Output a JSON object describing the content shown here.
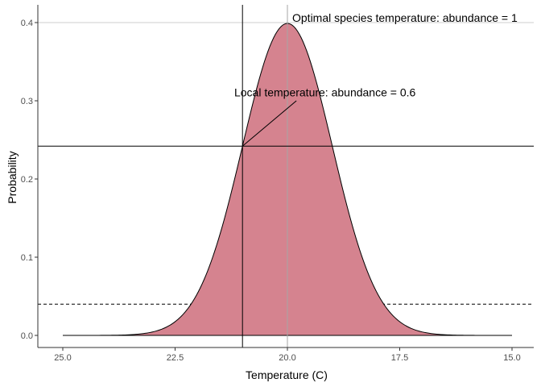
{
  "chart_data": {
    "type": "area",
    "xlabel": "Temperature (C)",
    "ylabel": "Probability",
    "x_reversed": true,
    "xlim": [
      25.0,
      15.0
    ],
    "ylim": [
      0.0,
      0.4
    ],
    "x_ticks": [
      25.0,
      22.5,
      20.0,
      17.5,
      15.0
    ],
    "x_tick_labels": [
      "25.0",
      "22.5",
      "20.0",
      "17.5",
      "15.0"
    ],
    "y_ticks": [
      0.0,
      0.1,
      0.2,
      0.3,
      0.4
    ],
    "y_tick_labels": [
      "0.0",
      "0.1",
      "0.2",
      "0.3",
      "0.4"
    ],
    "series": [
      {
        "type": "normal-density",
        "mean": 20.0,
        "sd": 1.0,
        "x_range": [
          24.8,
          15.0
        ],
        "fill": "#d5838f",
        "stroke": "#000000"
      }
    ],
    "reference_lines": {
      "vertical_solid_x": 21.0,
      "vertical_grey_x": 20.0,
      "horizontal_solid_y": 0.242,
      "horizontal_dashed_y": 0.04
    },
    "annotations": [
      {
        "text": "Optimal species temperature: abundance = 1",
        "x": 20.0,
        "y": 0.399,
        "anchor": "start"
      },
      {
        "text": "Local temperature: abundance =  0.6",
        "x": 19.2,
        "y": 0.31,
        "anchor": "middle"
      }
    ],
    "pointer_line": {
      "from": [
        21.0,
        0.242
      ],
      "to": [
        19.8,
        0.3
      ]
    },
    "grid": false,
    "legend": "none",
    "colors": {
      "fill": "#d5838f",
      "axis": "#333333",
      "grey_line": "#a6a6a6"
    }
  }
}
